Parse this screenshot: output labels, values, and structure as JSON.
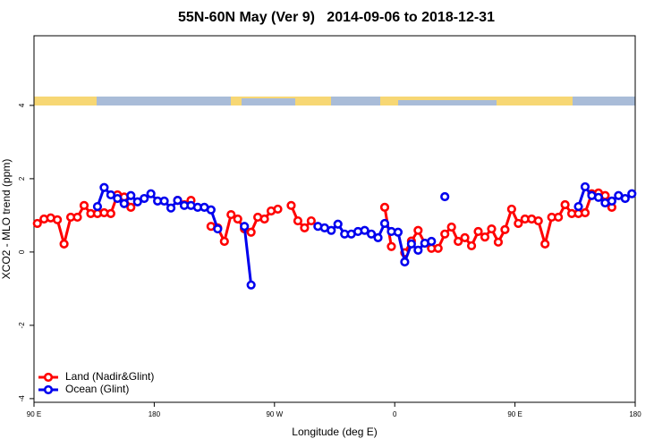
{
  "chart_data": {
    "type": "line",
    "title": "55N-60N May (Ver 9)   2014-09-06 to 2018-12-31",
    "x_label": "Longitude (deg E)",
    "y_label": "XCO2 - MLO trend (ppm)",
    "xlim": [
      90,
      540
    ],
    "ylim": [
      -4.1,
      5.9
    ],
    "xticks": [
      {
        "value": 90,
        "label": "90 E"
      },
      180,
      {
        "value": 270,
        "label": "90 W"
      },
      {
        "value": 360,
        "label": "0"
      },
      {
        "value": 450,
        "label": "90 E"
      },
      {
        "value": 540,
        "label": "180"
      }
    ],
    "yticks": [
      -4,
      -2,
      0,
      2,
      4
    ],
    "legend": "bottomleft",
    "x": [
      92.5,
      97.5,
      102.5,
      107.5,
      112.5,
      117.5,
      122.5,
      127.5,
      132.5,
      137.5,
      142.5,
      147.5,
      152.5,
      157.5,
      162.5,
      167.5,
      172.5,
      177.5,
      182.5,
      187.5,
      192.5,
      197.5,
      202.5,
      207.5,
      212.5,
      217.5,
      222.5,
      227.5,
      232.5,
      237.5,
      242.5,
      247.5,
      252.5,
      257.5,
      262.5,
      267.5,
      272.5,
      277.5,
      282.5,
      287.5,
      292.5,
      297.5,
      302.5,
      307.5,
      312.5,
      317.5,
      322.5,
      327.5,
      332.5,
      337.5,
      342.5,
      347.5,
      352.5,
      357.5,
      362.5,
      367.5,
      372.5,
      377.5,
      382.5,
      387.5,
      392.5,
      397.5,
      402.5,
      407.5,
      412.5,
      417.5,
      422.5,
      427.5,
      432.5,
      437.5,
      442.5,
      447.5,
      452.5,
      457.5,
      462.5,
      467.5,
      472.5,
      477.5,
      482.5,
      487.5,
      492.5,
      497.5,
      502.5,
      507.5,
      512.5,
      517.5,
      522.5,
      527.5,
      532.5,
      537.5
    ],
    "series": [
      {
        "name": "Land (Nadir&Glint)",
        "color": "#ff0000",
        "values": [
          0.78,
          0.9,
          0.93,
          0.88,
          0.22,
          0.95,
          0.95,
          1.27,
          1.05,
          1.05,
          1.07,
          1.05,
          1.56,
          1.5,
          1.22,
          null,
          null,
          null,
          null,
          null,
          null,
          1.41,
          1.29,
          1.41,
          null,
          null,
          0.7,
          0.66,
          0.29,
          1.02,
          0.9,
          0.63,
          0.54,
          0.95,
          0.9,
          1.12,
          1.17,
          null,
          1.27,
          0.85,
          0.66,
          0.85,
          null,
          null,
          null,
          null,
          null,
          null,
          null,
          null,
          null,
          null,
          1.22,
          0.15,
          null,
          -0.02,
          0.3,
          0.59,
          0.24,
          0.1,
          0.1,
          0.49,
          0.68,
          0.29,
          0.39,
          0.17,
          0.56,
          0.41,
          0.63,
          0.27,
          0.61,
          1.17,
          0.78,
          0.9,
          0.9,
          0.85,
          0.22,
          0.95,
          0.95,
          1.29,
          1.05,
          1.05,
          1.07,
          1.59,
          1.61,
          1.54,
          1.22,
          null,
          null,
          null
        ]
      },
      {
        "name": "Ocean (Glint)",
        "color": "#0000ee",
        "values": [
          null,
          null,
          null,
          null,
          null,
          null,
          null,
          null,
          null,
          1.24,
          1.76,
          1.56,
          1.46,
          1.32,
          1.54,
          1.37,
          1.46,
          1.59,
          1.39,
          1.39,
          1.2,
          1.41,
          1.27,
          1.27,
          1.22,
          1.22,
          1.15,
          0.63,
          null,
          null,
          null,
          0.7,
          -0.9,
          null,
          null,
          null,
          null,
          null,
          null,
          null,
          null,
          null,
          0.7,
          0.66,
          0.59,
          0.76,
          0.49,
          0.49,
          0.56,
          0.59,
          0.49,
          0.39,
          0.78,
          0.56,
          0.54,
          -0.27,
          0.22,
          0.05,
          0.24,
          0.29,
          null,
          1.51,
          null,
          null,
          null,
          null,
          null,
          null,
          null,
          null,
          null,
          null,
          null,
          null,
          null,
          null,
          null,
          null,
          null,
          null,
          null,
          1.24,
          1.78,
          1.54,
          1.49,
          1.34,
          1.39,
          1.54,
          1.46,
          1.59
        ]
      }
    ]
  }
}
